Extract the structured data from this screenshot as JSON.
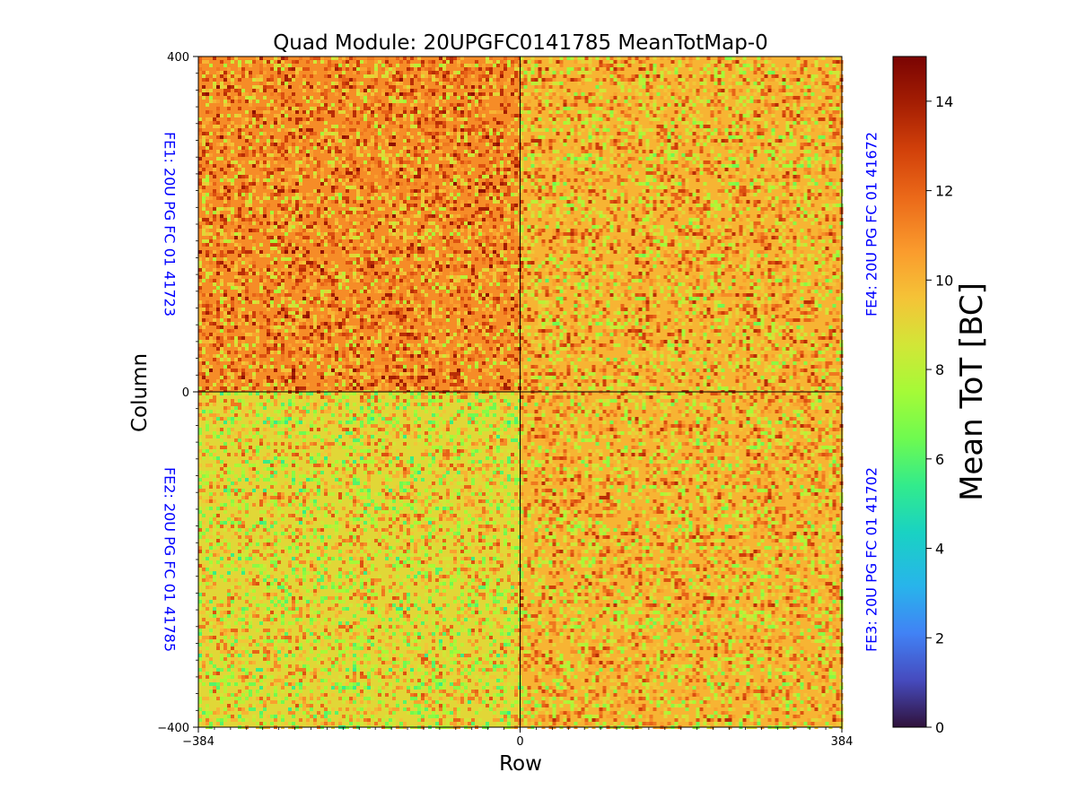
{
  "chart_data": {
    "type": "heatmap",
    "title": "Quad Module: 20UPGFC0141785 MeanTotMap-0",
    "xlabel": "Row",
    "ylabel": "Column",
    "xlim": [
      -384,
      384
    ],
    "ylim": [
      -400,
      400
    ],
    "x_ticks": [
      -384,
      0,
      384
    ],
    "y_ticks": [
      -400,
      0,
      400
    ],
    "x_tick_labels": [
      "−384",
      "0",
      "384"
    ],
    "y_tick_labels": [
      "−400",
      "0",
      "400"
    ],
    "divider_lines": {
      "x": 0,
      "y": 0
    },
    "colorbar": {
      "label": "Mean ToT [BC]",
      "range": [
        0,
        15
      ],
      "ticks": [
        0,
        2,
        4,
        6,
        8,
        10,
        12,
        14
      ],
      "colormap": "turbo"
    },
    "quadrants": [
      {
        "name": "FE1",
        "label": "FE1: 20U PG FC 01 41723",
        "x_range": [
          -384,
          0
        ],
        "y_range": [
          0,
          400
        ],
        "approx_mean_tot": 11,
        "label_side": "left"
      },
      {
        "name": "FE4",
        "label": "FE4: 20U PG FC 01 41672",
        "x_range": [
          0,
          384
        ],
        "y_range": [
          0,
          400
        ],
        "approx_mean_tot": 10,
        "label_side": "right"
      },
      {
        "name": "FE2",
        "label": "FE2: 20U PG FC 01 41785",
        "x_range": [
          -384,
          0
        ],
        "y_range": [
          -400,
          0
        ],
        "approx_mean_tot": 9,
        "label_side": "left"
      },
      {
        "name": "FE3",
        "label": "FE3: 20U PG FC 01 41702",
        "x_range": [
          0,
          384
        ],
        "y_range": [
          -400,
          0
        ],
        "approx_mean_tot": 10,
        "label_side": "right"
      }
    ]
  },
  "colors": {
    "quadrant_label": "#0000ff",
    "axis": "#000000",
    "background": "#ffffff"
  }
}
